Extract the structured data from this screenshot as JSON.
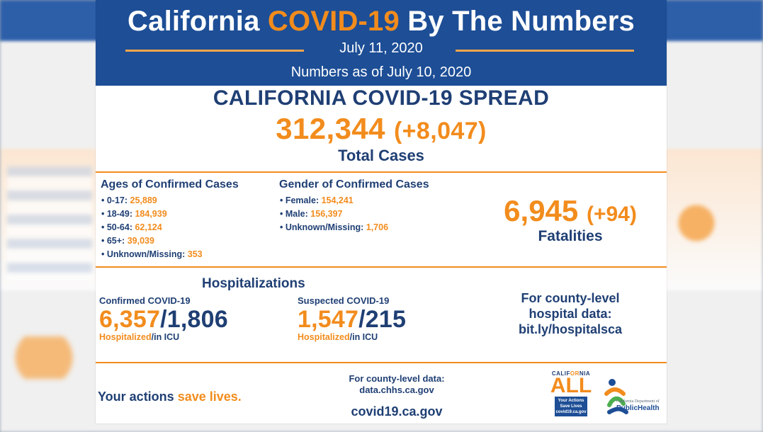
{
  "header": {
    "title_part1": "California",
    "title_part2": "COVID-19",
    "title_part3": "By The Numbers",
    "date": "July 11, 2020",
    "as_of": "Numbers as of July 10, 2020",
    "colors": {
      "header_blue": "#1d4e96",
      "accent_orange": "#f28c1d",
      "text_navy": "#1f3f74"
    }
  },
  "spread": {
    "title": "CALIFORNIA COVID-19 SPREAD",
    "total_cases": "312,344",
    "delta": "(+8,047)",
    "label": "Total Cases"
  },
  "ages": {
    "title": "Ages of Confirmed Cases",
    "items": [
      {
        "label": "• 0-17:",
        "value": "25,889"
      },
      {
        "label": "• 18-49:",
        "value": "184,939"
      },
      {
        "label": "• 50-64:",
        "value": "62,124"
      },
      {
        "label": "• 65+:",
        "value": "39,039"
      },
      {
        "label": "• Unknown/Missing:",
        "value": "353"
      }
    ]
  },
  "gender": {
    "title": "Gender of Confirmed Cases",
    "items": [
      {
        "label": "• Female:",
        "value": "154,241"
      },
      {
        "label": "• Male:",
        "value": "156,397"
      },
      {
        "label": "• Unknown/Missing:",
        "value": "1,706"
      }
    ]
  },
  "fatalities": {
    "value": "6,945",
    "delta": "(+94)",
    "label": "Fatalities"
  },
  "hospitalizations": {
    "title": "Hospitalizations",
    "confirmed": {
      "label": "Confirmed COVID-19",
      "hospitalized": "6,357",
      "icu": "1,806",
      "sub_hospitalized": "Hospitalized",
      "sub_icu": "/in ICU"
    },
    "suspected": {
      "label": "Suspected COVID-19",
      "hospitalized": "1,547",
      "icu": "215",
      "sub_hospitalized": "Hospitalized",
      "sub_icu": "/in ICU"
    },
    "county_hosp": {
      "line1": "For county-level",
      "line2": "hospital data:",
      "line3": "bit.ly/hospitalsca"
    }
  },
  "footer": {
    "left_part1": "Your actions ",
    "left_part2": "save lives.",
    "county_line1": "For county-level data:",
    "county_line2": "data.chhs.ca.gov",
    "site": "covid19.ca.gov"
  },
  "logos": {
    "california_all": {
      "top_part1": "CALIF",
      "top_part2": "OR",
      "top_part3": "NIA",
      "all": "ALL",
      "box_text": "Your Actions Save Lives covid19.ca.gov"
    },
    "cdph": {
      "small": "California Department of",
      "big": "PublicHealth"
    }
  },
  "icons": {
    "cdph_logo_icon": "cdph-logo-icon"
  }
}
